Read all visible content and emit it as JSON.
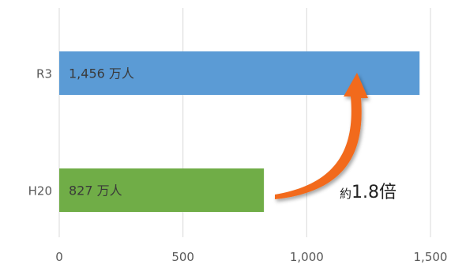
{
  "chart_data": {
    "type": "bar",
    "orientation": "horizontal",
    "categories": [
      "R3",
      "H20"
    ],
    "values": [
      1456,
      827
    ],
    "value_labels": [
      "1,456 万人",
      "827 万人"
    ],
    "bar_colors": [
      "#5b9bd5",
      "#70ad47"
    ],
    "x_ticks": [
      0,
      500,
      1000,
      1500
    ],
    "x_tick_labels": [
      "0",
      "500",
      "1,000",
      "1,500"
    ],
    "xlim": [
      0,
      1500
    ],
    "grid": "vertical",
    "annotation": {
      "prefix": "約",
      "text": "1.8倍",
      "arrow_color": "#f26b1d"
    },
    "title": "",
    "xlabel": "",
    "ylabel": ""
  }
}
